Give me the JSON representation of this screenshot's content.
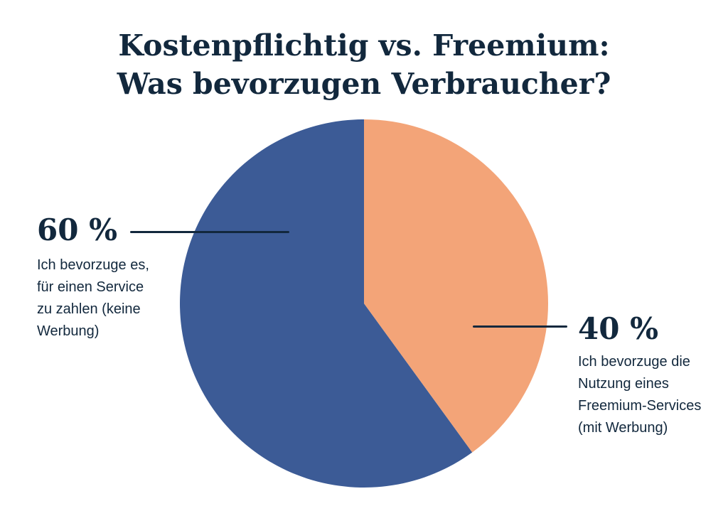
{
  "title": {
    "line1": "Kostenpflichtig vs. Freemium:",
    "line2": "Was bevorzugen Verbraucher?"
  },
  "chart_data": {
    "type": "pie",
    "title": "Kostenpflichtig vs. Freemium: Was bevorzugen Verbraucher?",
    "unit": "%",
    "direction": "counterclockwise",
    "start_angle_deg": 0,
    "legend_position": "none",
    "slices": [
      {
        "id": "paid",
        "label": "Ich bevorzuge es, für einen Service zu zahlen (keine Werbung)",
        "value": 60,
        "color": "#3C5B96"
      },
      {
        "id": "freemium",
        "label": "Ich bevorzuge die Nutzung eines Freemium-Services (mit Werbung)",
        "value": 40,
        "color": "#F3A478"
      }
    ]
  },
  "annotations": {
    "left": {
      "pct": "60 %",
      "lines": "Ich bevorzuge es,\nfür einen Service\nzu zahlen (keine\nWerbung)"
    },
    "right": {
      "pct": "40 %",
      "lines": "Ich bevorzuge die\nNutzung eines\nFreemium-Services\n(mit Werbung)"
    }
  },
  "style": {
    "text_color": "#12283D",
    "leader_line_color": "#12283D",
    "background": "#FFFFFF"
  }
}
